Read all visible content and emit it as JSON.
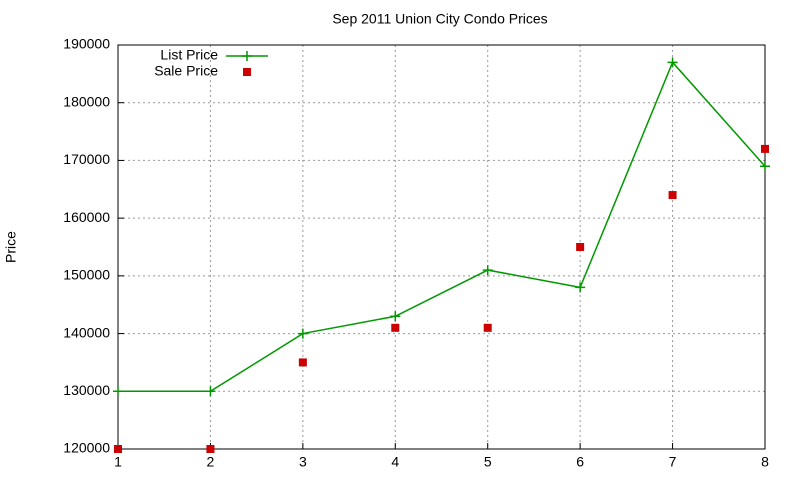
{
  "chart_data": {
    "type": "line",
    "title": "Sep 2011 Union City Condo Prices",
    "y_label": "Price",
    "x": [
      1,
      2,
      3,
      4,
      5,
      6,
      7,
      8
    ],
    "series": [
      {
        "name": "List Price",
        "color": "#009900",
        "style": "linespoints",
        "marker": "plus",
        "values": [
          130000,
          130000,
          140000,
          143000,
          151000,
          148000,
          187000,
          169000
        ]
      },
      {
        "name": "Sale Price",
        "color": "#cc0000",
        "style": "points",
        "marker": "square",
        "values": [
          120000,
          120000,
          135000,
          141000,
          141000,
          155000,
          164000,
          172000
        ]
      }
    ],
    "xlim": [
      1,
      8
    ],
    "xticks": [
      1,
      2,
      3,
      4,
      5,
      6,
      7,
      8
    ],
    "ylim": [
      120000,
      190000
    ],
    "yticks": [
      120000,
      130000,
      140000,
      150000,
      160000,
      170000,
      180000,
      190000
    ],
    "grid": true,
    "legend": "top-left"
  }
}
